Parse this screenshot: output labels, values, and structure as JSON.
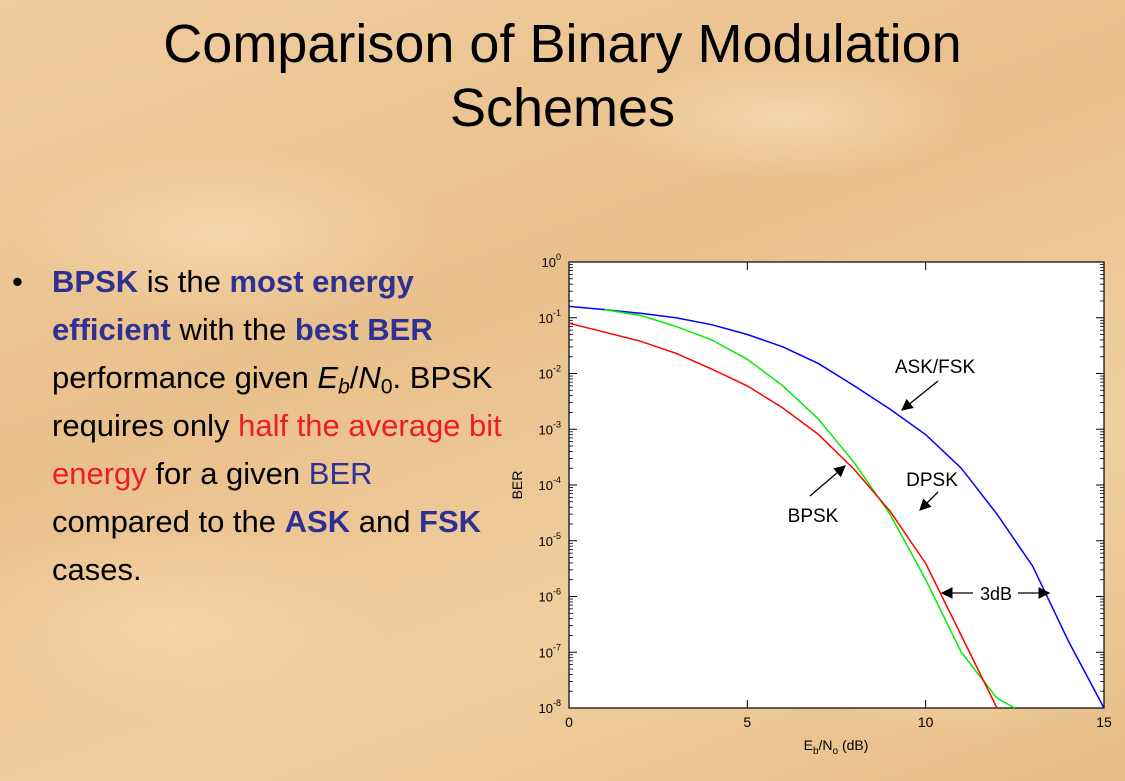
{
  "slide": {
    "title_line1": "Comparison of Binary Modulation",
    "title_line2": "Schemes",
    "bullet": {
      "marker": "•",
      "t1": "BPSK",
      "t2": " is the ",
      "t3": "most energy efficient",
      "t4": " with the ",
      "t5": "best BER",
      "t6": " performance given ",
      "eb_E": "E",
      "eb_b": "b",
      "eb_slash": "/",
      "eb_N": "N",
      "eb_0": "0",
      "t7": ". BPSK requires only ",
      "t8": "half the average bit energy",
      "t9": " for a given ",
      "t10": "BER",
      "t11": " compared to the ",
      "t12": "ASK",
      "t13": " and ",
      "t14": "FSK",
      "t15": " cases."
    }
  },
  "chart_data": {
    "type": "line",
    "title": "",
    "xlabel": {
      "E": "E",
      "b": "b",
      "slash": "/N",
      "o": "o",
      "unit": " (dB)"
    },
    "ylabel": "BER",
    "xlim": [
      0,
      15
    ],
    "ylim_log10": [
      -8,
      0
    ],
    "y_scale": "log",
    "grid": false,
    "x_ticks": [
      "0",
      "5",
      "10",
      "15"
    ],
    "y_ticks": [
      {
        "base": "10",
        "exp": "0"
      },
      {
        "base": "10",
        "exp": "-1"
      },
      {
        "base": "10",
        "exp": "-2"
      },
      {
        "base": "10",
        "exp": "-3"
      },
      {
        "base": "10",
        "exp": "-4"
      },
      {
        "base": "10",
        "exp": "-5"
      },
      {
        "base": "10",
        "exp": "-6"
      },
      {
        "base": "10",
        "exp": "-7"
      },
      {
        "base": "10",
        "exp": "-8"
      }
    ],
    "series": [
      {
        "name": "ASK/FSK",
        "color": "#0000ff",
        "x": [
          0,
          1,
          2,
          3,
          4,
          5,
          6,
          7,
          8,
          9,
          10,
          11,
          12,
          13,
          14,
          15
        ],
        "y": [
          0.16,
          0.14,
          0.12,
          0.1,
          0.075,
          0.05,
          0.03,
          0.015,
          0.006,
          0.0023,
          0.0008,
          0.0002,
          3e-05,
          3.5e-06,
          1.6e-07,
          1e-08
        ]
      },
      {
        "name": "DPSK",
        "color": "#00ee00",
        "x": [
          1,
          2,
          3,
          4,
          5,
          6,
          7,
          8,
          9,
          10,
          11,
          12,
          12.5
        ],
        "y": [
          0.14,
          0.11,
          0.07,
          0.04,
          0.018,
          0.006,
          0.0015,
          0.00025,
          3e-05,
          2e-06,
          1e-07,
          1.5e-08,
          1e-08
        ]
      },
      {
        "name": "BPSK",
        "color": "#ff0000",
        "x": [
          0,
          1,
          2,
          3,
          4,
          5,
          6,
          7,
          8,
          9,
          10,
          11,
          12
        ],
        "y": [
          0.08,
          0.055,
          0.038,
          0.023,
          0.012,
          0.006,
          0.0024,
          0.0008,
          0.00019,
          3.4e-05,
          3.9e-06,
          2e-07,
          1e-08
        ]
      }
    ],
    "annotations": {
      "ask_fsk": "ASK/FSK",
      "dpsk": "DPSK",
      "bpsk": "BPSK",
      "gap": "3dB"
    }
  }
}
